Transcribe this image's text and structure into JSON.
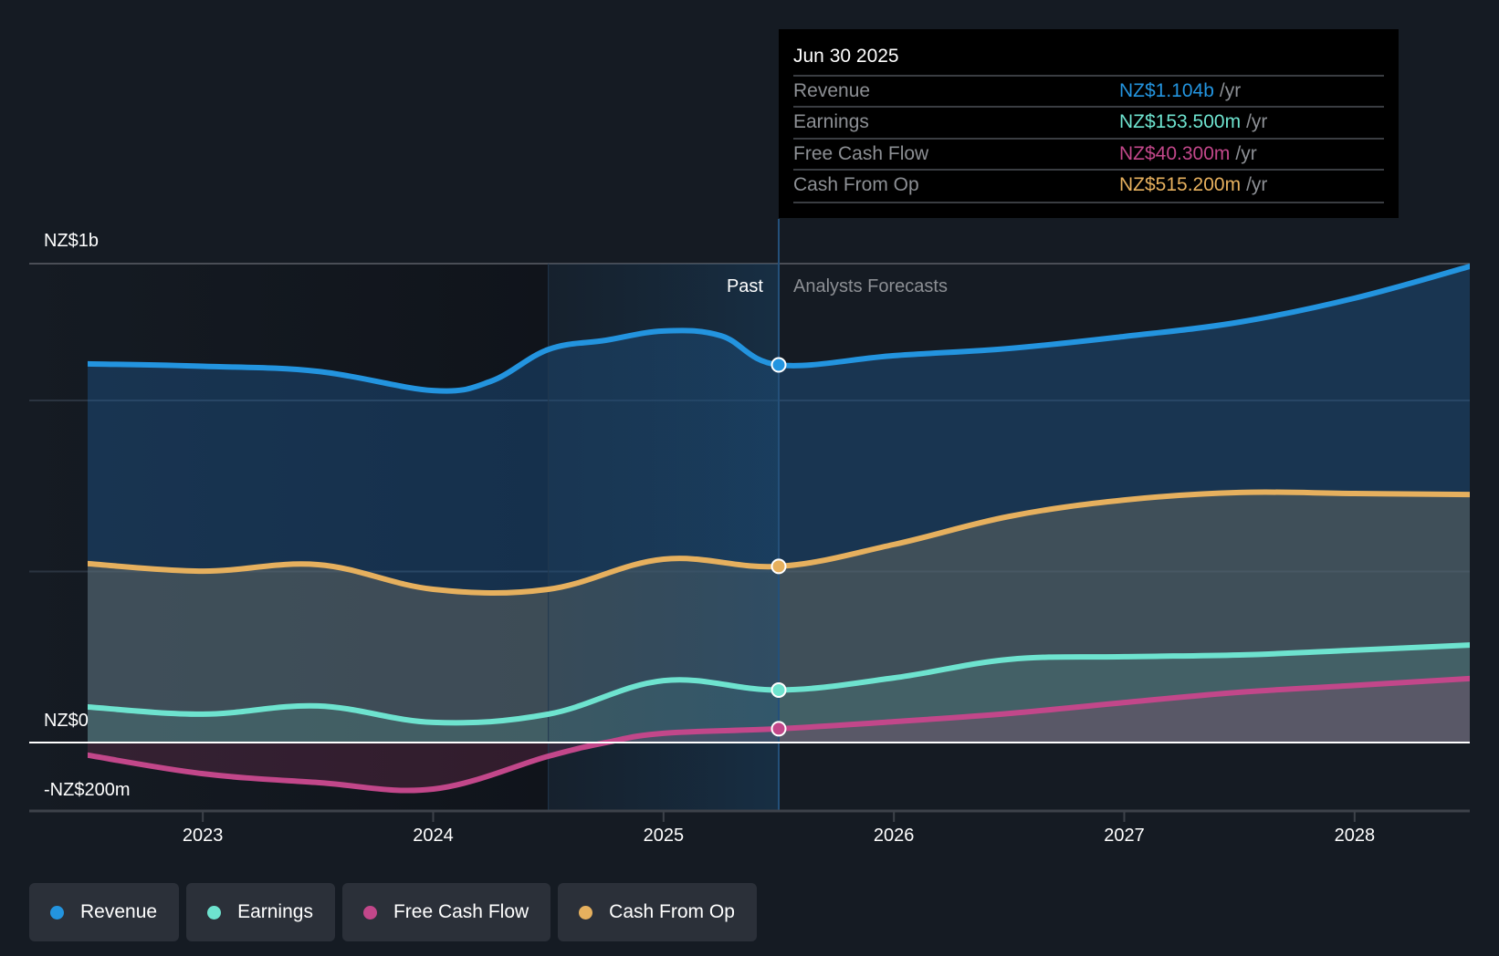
{
  "chart_data": {
    "type": "area",
    "title": "",
    "currency_unit": "NZ$ millions",
    "x_range": [
      2022.5,
      2028.5
    ],
    "ylim": [
      -200,
      1400
    ],
    "grid": true,
    "y_gridlines": [
      500,
      1000,
      1400
    ],
    "y_tick_labels": [
      {
        "value": 1400,
        "label": "NZ$1b"
      },
      {
        "value": 0,
        "label": "NZ$0"
      },
      {
        "value": -200,
        "label": "-NZ$200m"
      }
    ],
    "x_ticks": [
      {
        "value": 2023,
        "label": "2023"
      },
      {
        "value": 2024,
        "label": "2024"
      },
      {
        "value": 2025,
        "label": "2025"
      },
      {
        "value": 2026,
        "label": "2026"
      },
      {
        "value": 2027,
        "label": "2027"
      },
      {
        "value": 2028,
        "label": "2028"
      }
    ],
    "past_band": [
      2024.5,
      2025.5
    ],
    "divider_x": 2025.5,
    "region_labels": {
      "past": "Past",
      "forecast": "Analysts Forecasts"
    },
    "legend_position": "bottom-left",
    "series": [
      {
        "name": "Revenue",
        "color": "#2394df",
        "x": [
          2022.5,
          2023.0,
          2023.5,
          2024.0,
          2024.25,
          2024.5,
          2024.75,
          2025.0,
          2025.25,
          2025.5,
          2026.0,
          2026.5,
          2027.0,
          2027.5,
          2028.0,
          2028.5
        ],
        "values": [
          1107,
          1100,
          1085,
          1029,
          1056,
          1149,
          1176,
          1203,
          1189,
          1104,
          1131,
          1152,
          1187,
          1229,
          1299,
          1392
        ]
      },
      {
        "name": "Cash From Op",
        "color": "#e6b05e",
        "x": [
          2022.5,
          2023.0,
          2023.5,
          2024.0,
          2024.5,
          2025.0,
          2025.5,
          2026.0,
          2026.5,
          2027.0,
          2027.5,
          2028.0,
          2028.5
        ],
        "values": [
          523,
          501,
          520,
          448,
          448,
          536,
          515,
          579,
          661,
          709,
          731,
          728,
          725
        ]
      },
      {
        "name": "Earnings",
        "color": "#6ee3cf",
        "x": [
          2022.5,
          2023.0,
          2023.5,
          2024.0,
          2024.5,
          2025.0,
          2025.5,
          2026.0,
          2026.5,
          2027.0,
          2027.5,
          2028.0,
          2028.5
        ],
        "values": [
          104,
          83,
          107,
          59,
          83,
          181,
          153.5,
          189,
          243,
          251,
          256,
          270,
          285
        ]
      },
      {
        "name": "Free Cash Flow",
        "color": "#c2478a",
        "x": [
          2022.5,
          2023.0,
          2023.5,
          2024.0,
          2024.5,
          2024.75,
          2025.0,
          2025.5,
          2026.0,
          2026.5,
          2027.0,
          2027.5,
          2028.0,
          2028.5
        ],
        "values": [
          -37,
          -91,
          -117,
          -136,
          -40,
          0,
          27,
          40.3,
          61,
          85,
          117,
          147,
          167,
          187
        ]
      }
    ]
  },
  "tooltip": {
    "date": "Jun 30 2025",
    "unit": "/yr",
    "rows": [
      {
        "label": "Revenue",
        "value": "NZ$1.104b",
        "color": "#2394df"
      },
      {
        "label": "Earnings",
        "value": "NZ$153.500m",
        "color": "#6ee3cf"
      },
      {
        "label": "Free Cash Flow",
        "value": "NZ$40.300m",
        "color": "#c2478a"
      },
      {
        "label": "Cash From Op",
        "value": "NZ$515.200m",
        "color": "#e6b05e"
      }
    ]
  },
  "legend": [
    {
      "label": "Revenue",
      "color": "#2394df"
    },
    {
      "label": "Earnings",
      "color": "#6ee3cf"
    },
    {
      "label": "Free Cash Flow",
      "color": "#c2478a"
    },
    {
      "label": "Cash From Op",
      "color": "#e6b05e"
    }
  ]
}
